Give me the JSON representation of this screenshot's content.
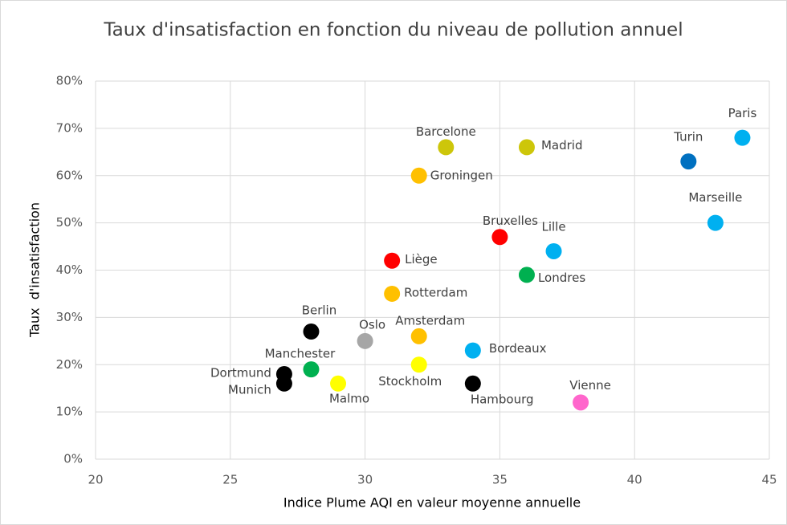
{
  "chart_data": {
    "type": "scatter",
    "title": "Taux d'insatisfaction en fonction du niveau de pollution annuel",
    "xlabel": "Indice Plume AQI en valeur moyenne annuelle",
    "ylabel": "Taux  d'insatisfaction",
    "labels": [
      "Paris",
      "Turin",
      "Marseille",
      "Barcelone",
      "Madrid",
      "Groningen",
      "Bruxelles",
      "Lille",
      "Liège",
      "Londres",
      "Rotterdam",
      "Berlin",
      "Oslo",
      "Amsterdam",
      "Bordeaux",
      "Manchester",
      "Stockholm",
      "Dortmund",
      "Munich",
      "Malmo",
      "Hambourg",
      "Vienne"
    ],
    "x": [
      44,
      42,
      43,
      33,
      36,
      32,
      35,
      37,
      31,
      36,
      31,
      28,
      30,
      32,
      34,
      28,
      32,
      27,
      27,
      29,
      34,
      38
    ],
    "values": [
      68,
      63,
      50,
      66,
      66,
      60,
      47,
      44,
      42,
      39,
      35,
      27,
      25,
      26,
      23,
      19,
      20,
      18,
      16,
      16,
      16,
      12
    ],
    "colors": [
      "#00b0f0",
      "#0070c0",
      "#00b0f0",
      "#cdc60a",
      "#cdc60a",
      "#ffc000",
      "#ff0000",
      "#00b0f0",
      "#ff0000",
      "#00b050",
      "#ffc000",
      "#000000",
      "#a6a6a6",
      "#ffc000",
      "#00b0f0",
      "#00b050",
      "#ffff00",
      "#000000",
      "#000000",
      "#ffff00",
      "#000000",
      "#ff66cc"
    ],
    "xlim": [
      20,
      45
    ],
    "xticks": [
      20,
      25,
      30,
      35,
      40,
      45
    ],
    "ylim": [
      0,
      80
    ],
    "yticks": [
      {
        "value": 0,
        "label": "0%"
      },
      {
        "value": 10,
        "label": "10%"
      },
      {
        "value": 20,
        "label": "20%"
      },
      {
        "value": 30,
        "label": "30%"
      },
      {
        "value": 40,
        "label": "40%"
      },
      {
        "value": 50,
        "label": "50%"
      },
      {
        "value": 60,
        "label": "60%"
      },
      {
        "value": 70,
        "label": "70%"
      },
      {
        "value": 80,
        "label": "80%"
      }
    ],
    "grid": true
  }
}
